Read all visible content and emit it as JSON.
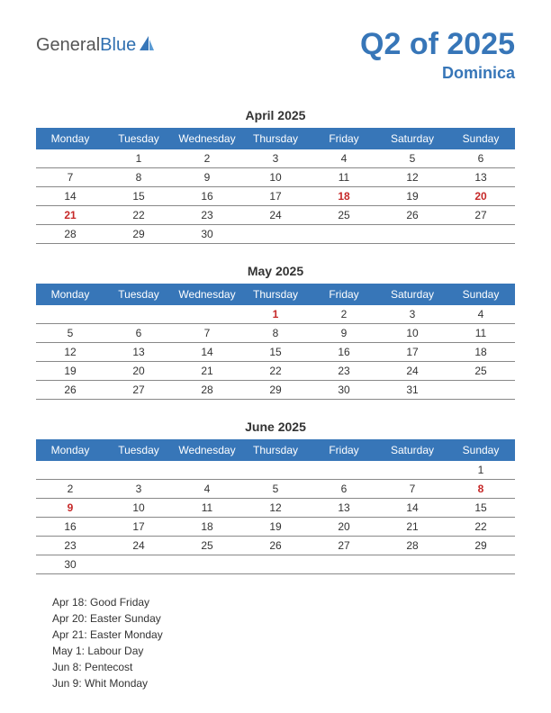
{
  "logo": {
    "general": "General",
    "blue": "Blue"
  },
  "header": {
    "title": "Q2 of 2025",
    "subtitle": "Dominica"
  },
  "colors": {
    "brand": "#3776b8",
    "holiday": "#c62828",
    "text": "#333333",
    "border": "#888888",
    "header_bg": "#3776b8",
    "header_fg": "#ffffff",
    "background": "#ffffff"
  },
  "weekdays": [
    "Monday",
    "Tuesday",
    "Wednesday",
    "Thursday",
    "Friday",
    "Saturday",
    "Sunday"
  ],
  "months": [
    {
      "title": "April 2025",
      "weeks": [
        [
          "",
          "1",
          "2",
          "3",
          "4",
          "5",
          "6"
        ],
        [
          "7",
          "8",
          "9",
          "10",
          "11",
          "12",
          "13"
        ],
        [
          "14",
          "15",
          "16",
          "17",
          "18",
          "19",
          "20"
        ],
        [
          "21",
          "22",
          "23",
          "24",
          "25",
          "26",
          "27"
        ],
        [
          "28",
          "29",
          "30",
          "",
          "",
          "",
          ""
        ]
      ],
      "holidays": [
        "18",
        "20",
        "21"
      ]
    },
    {
      "title": "May 2025",
      "weeks": [
        [
          "",
          "",
          "",
          "1",
          "2",
          "3",
          "4"
        ],
        [
          "5",
          "6",
          "7",
          "8",
          "9",
          "10",
          "11"
        ],
        [
          "12",
          "13",
          "14",
          "15",
          "16",
          "17",
          "18"
        ],
        [
          "19",
          "20",
          "21",
          "22",
          "23",
          "24",
          "25"
        ],
        [
          "26",
          "27",
          "28",
          "29",
          "30",
          "31",
          ""
        ]
      ],
      "holidays": [
        "1"
      ]
    },
    {
      "title": "June 2025",
      "weeks": [
        [
          "",
          "",
          "",
          "",
          "",
          "",
          "1"
        ],
        [
          "2",
          "3",
          "4",
          "5",
          "6",
          "7",
          "8"
        ],
        [
          "9",
          "10",
          "11",
          "12",
          "13",
          "14",
          "15"
        ],
        [
          "16",
          "17",
          "18",
          "19",
          "20",
          "21",
          "22"
        ],
        [
          "23",
          "24",
          "25",
          "26",
          "27",
          "28",
          "29"
        ],
        [
          "30",
          "",
          "",
          "",
          "",
          "",
          ""
        ]
      ],
      "holidays": [
        "8",
        "9"
      ]
    }
  ],
  "holiday_list": [
    "Apr 18: Good Friday",
    "Apr 20: Easter Sunday",
    "Apr 21: Easter Monday",
    "May 1: Labour Day",
    "Jun 8: Pentecost",
    "Jun 9: Whit Monday"
  ]
}
